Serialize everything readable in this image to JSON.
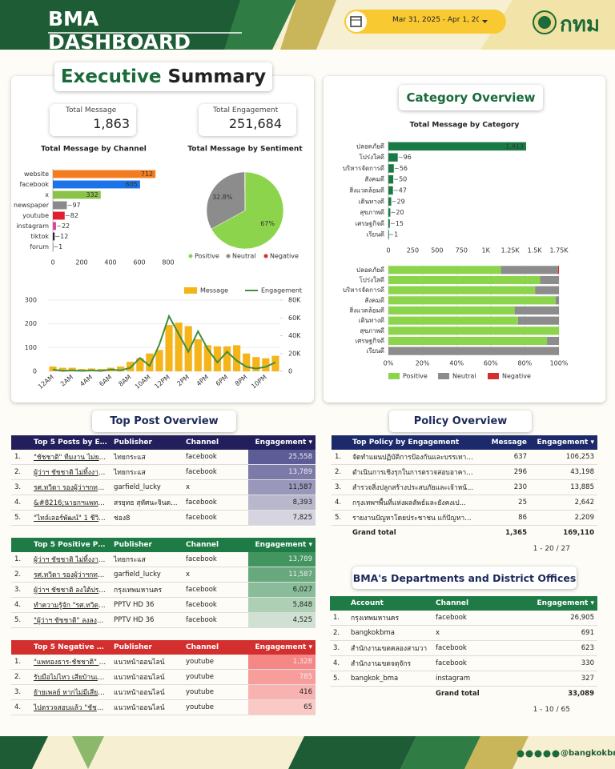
{
  "header": {
    "title": "BMA DASHBOARD",
    "date_range": "Mar 31, 2025 - Apr 1, 202",
    "logo": "กทม"
  },
  "executive_summary": {
    "title_a": "Executive",
    "title_b": "Summary",
    "kpis": [
      {
        "label": "Total Message",
        "value": "1,863"
      },
      {
        "label": "Total Engagement",
        "value": "251,684"
      }
    ]
  },
  "category_overview": {
    "title": "Category Overview"
  },
  "chart_data": [
    {
      "type": "bar",
      "orientation": "horizontal",
      "title": "Total Message by Channel",
      "categories": [
        "website",
        "facebook",
        "x",
        "newspaper",
        "youtube",
        "instagram",
        "tiktok",
        "forum"
      ],
      "values": [
        712,
        605,
        332,
        97,
        82,
        22,
        12,
        1
      ],
      "colors": [
        "#f47c20",
        "#1a73e8",
        "#8bc34a",
        "#8a8a8a",
        "#e0202e",
        "#e040a0",
        "#222222",
        "#9e9e9e"
      ],
      "xlim": [
        0,
        800
      ],
      "xticks": [
        0,
        200,
        400,
        600,
        800
      ],
      "grid": false
    },
    {
      "type": "pie",
      "title": "Total Message by Sentiment",
      "categories": [
        "Positive",
        "Neutral",
        "Negative"
      ],
      "values": [
        67,
        32.8,
        0.2
      ],
      "value_labels": [
        "67%",
        "32.8%",
        null
      ],
      "colors": [
        "#8cd44c",
        "#8c8c8c",
        "#d32f2f"
      ],
      "legend": "bottom"
    },
    {
      "type": "combo",
      "categories": [
        "12AM",
        null,
        "2AM",
        null,
        "4AM",
        null,
        "6AM",
        null,
        "8AM",
        null,
        "10AM",
        null,
        "12PM",
        null,
        "2PM",
        null,
        "4PM",
        null,
        "6PM",
        null,
        "8PM",
        null,
        "10PM",
        null
      ],
      "series": [
        {
          "name": "Message",
          "kind": "bar",
          "color": "#f5b41a",
          "values": [
            20,
            15,
            15,
            10,
            12,
            10,
            15,
            20,
            40,
            55,
            75,
            90,
            195,
            205,
            190,
            135,
            110,
            105,
            105,
            110,
            75,
            60,
            55,
            65
          ]
        },
        {
          "name": "Engagement",
          "kind": "line",
          "axis": "y2",
          "color": "#3f8f3f",
          "values": [
            2000,
            500,
            1000,
            500,
            1000,
            500,
            2000,
            1000,
            4000,
            15000,
            6000,
            30000,
            62000,
            42000,
            22000,
            45000,
            25000,
            10000,
            22000,
            12000,
            5000,
            3000,
            5000,
            10000
          ]
        }
      ],
      "ylim": [
        0,
        300
      ],
      "yticks": [
        0,
        100,
        200,
        300
      ],
      "y2lim": [
        0,
        80000
      ],
      "y2ticks": [
        0,
        {
          "value": 20000,
          "label": "20K"
        },
        {
          "value": 40000,
          "label": "40K"
        },
        {
          "value": 60000,
          "label": "60K"
        },
        {
          "value": 80000,
          "label": "80K"
        }
      ],
      "legend": "top",
      "grid": true
    },
    {
      "type": "bar",
      "orientation": "horizontal",
      "title": "Total Message by Category",
      "categories": [
        "ปลอดภัยดี",
        "โปร่งใสดี",
        "บริหารจัดการดี",
        "สังคมดี",
        "สิ่งแวดล้อมดี",
        "เดินทางดี",
        "สุขภาพดี",
        "เศรษฐกิจดี",
        "เรียนดี"
      ],
      "values": [
        1413,
        96,
        56,
        50,
        47,
        29,
        20,
        15,
        1
      ],
      "value_labels": [
        "1,413",
        "96",
        "56",
        "50",
        "47",
        "29",
        "20",
        "15",
        "1"
      ],
      "color": "#1a7a45",
      "xlim": [
        0,
        1750
      ],
      "xticks": [
        0,
        250,
        500,
        750,
        {
          "value": 1000,
          "label": "1K"
        },
        {
          "value": 1250,
          "label": "1.25K"
        },
        {
          "value": 1500,
          "label": "1.5K"
        },
        {
          "value": 1750,
          "label": "1.75K"
        }
      ],
      "grid": false
    },
    {
      "type": "stacked_bar",
      "orientation": "horizontal",
      "categories": [
        "ปลอดภัยดี",
        "โปร่งใสดี",
        "บริหารจัดการดี",
        "สังคมดี",
        "สิ่งแวดล้อมดี",
        "เดินทางดี",
        "สุขภาพดี",
        "เศรษฐกิจดี",
        "เรียนดี"
      ],
      "series": [
        {
          "name": "Positive",
          "color": "#8cd44c",
          "values": [
            66,
            89,
            86,
            98,
            74,
            76,
            100,
            93,
            0
          ]
        },
        {
          "name": "Neutral",
          "color": "#8c8c8c",
          "values": [
            33.5,
            11,
            14,
            2,
            26,
            24,
            0,
            7,
            100
          ]
        },
        {
          "name": "Negative",
          "color": "#d32f2f",
          "values": [
            0.5,
            0,
            0,
            0,
            0,
            0,
            0,
            0,
            0
          ]
        }
      ],
      "xlim": [
        0,
        100
      ],
      "xticks": [
        {
          "value": 0,
          "label": "0%"
        },
        {
          "value": 20,
          "label": "20%"
        },
        {
          "value": 40,
          "label": "40%"
        },
        {
          "value": 60,
          "label": "60%"
        },
        {
          "value": 80,
          "label": "80%"
        },
        {
          "value": 100,
          "label": "100%"
        }
      ],
      "legend": "bottom",
      "grid": true
    }
  ],
  "top_post_overview": {
    "title": "Top Post Overview",
    "tables": [
      {
        "color": "#231f5c",
        "heat": "#4b4a8c",
        "columns": [
          "Top 5 Posts by En...",
          "Publisher",
          "Channel",
          "Engagement ▾"
        ],
        "rows": [
          [
            "1.",
            "\"ชัชชาติ\" ทีมงาน ไม่ยอมเล...",
            "ไทยกระแส",
            "facebook",
            "25,558"
          ],
          [
            "2.",
            "ผู้ว่าฯ ชัชชาติ ไม่ทิ้งงานน...",
            "ไทยกระแส",
            "facebook",
            "13,789"
          ],
          [
            "3.",
            "รศ.ทวิดา รองผู้ว่าฯกทม.พื้...",
            "garfield_lucky",
            "x",
            "11,587"
          ],
          [
            "4.",
            "&#8216;นายกฯแพทองธ...",
            "สรยุทธ สุทัศนะจินดา กรร...",
            "facebook",
            "8,393"
          ],
          [
            "5.",
            "\"ไทล์เลอร์พัฒน์\" 1 ชีวิต กัป...",
            "ช่อง8",
            "facebook",
            "7,825"
          ]
        ]
      },
      {
        "color": "#1e7b46",
        "heat": "#2e8a4f",
        "columns": [
          "Top 5 Positive Po...",
          "Publisher",
          "Channel",
          "Engagement ▾"
        ],
        "rows": [
          [
            "1.",
            "ผู้ว่าฯ ชัชชาติ ไม่ทิ้งงานน...",
            "ไทยกระแส",
            "facebook",
            "13,789"
          ],
          [
            "2.",
            "รศ.ทวิดา รองผู้ว่าฯกทม.พื้...",
            "garfield_lucky",
            "x",
            "11,587"
          ],
          [
            "3.",
            "ผู้ว่าฯ ชัชชาติ ลงใต้ประเม...",
            "กรุงเทพมหานคร",
            "facebook",
            "6,027"
          ],
          [
            "4.",
            "ทำความรู้จัก \"รศ.ทวิดา ร...",
            "PPTV HD 36",
            "facebook",
            "5,848"
          ],
          [
            "5.",
            "\"ผู้ว่าฯ ชัชชาติ\" ลงลงพื้นที...",
            "PPTV HD 36",
            "facebook",
            "4,525"
          ]
        ]
      },
      {
        "color": "#d32f2f",
        "heat": "#f47a7a",
        "columns": [
          "Top 5 Negative P...",
          "Publisher",
          "Channel",
          "Engagement ▾"
        ],
        "rows": [
          [
            "1.",
            "\"แพทองธาร-ชัชชาติ\" ลงพ...",
            "แนวหน้าออนไลน์",
            "youtube",
            "1,328"
          ],
          [
            "2.",
            "รับมือไม่ไหว เสียบ้านเมือ...",
            "แนวหน้าออนไลน์",
            "youtube",
            "785"
          ],
          [
            "3.",
            "ย้ายเพลย์ หากไม่มีเสียงเย...",
            "แนวหน้าออนไลน์",
            "youtube",
            "416"
          ],
          [
            "4.",
            "ไปตรวจสอบแล้ว \"ชัชชาติ\"...",
            "แนวหน้าออนไลน์",
            "youtube",
            "65"
          ]
        ]
      }
    ]
  },
  "policy_overview": {
    "title": "Policy Overview",
    "table": {
      "color": "#1c2a6b",
      "columns": [
        "Top Policy by Engagement",
        "Message",
        "Engagement ▾"
      ],
      "rows": [
        [
          "1.",
          "จัดทำแผนปฏิบัติการป้องกันและบรรเทาส...",
          "637",
          "106,253"
        ],
        [
          "2.",
          "ตำเนินการเชิงรุกในการตรวจสอบอาคารเก่...",
          "296",
          "43,198"
        ],
        [
          "3.",
          "สำรวจสิ่งปลูกสร้างประสบภัยและเจ้าหน้...",
          "230",
          "13,885"
        ],
        [
          "4.",
          "กรุงเทพฯพื้นที่แห่งผลลัพธ์และยังคงเป...",
          "25",
          "2,642"
        ],
        [
          "5.",
          "รายงานปัญหาโดยประชาชน แก้ปัญหาโด...",
          "86",
          "2,209"
        ]
      ],
      "total": [
        null,
        "Grand total",
        "1,365",
        "169,110"
      ],
      "pagination": "1 - 20 / 27"
    }
  },
  "departments": {
    "title": "BMA's Departments and District Offices",
    "table": {
      "color": "#1e7b46",
      "columns": [
        "Account",
        "Channel",
        "Engagement ▾"
      ],
      "rows": [
        [
          "1.",
          "กรุงเทพมหานคร",
          "facebook",
          "26,905"
        ],
        [
          "2.",
          "bangkokbma",
          "x",
          "691"
        ],
        [
          "3.",
          "สำนักงานเขตคลองสามวา",
          "facebook",
          "623"
        ],
        [
          "4.",
          "สำนักงานเขตจตุจักร",
          "facebook",
          "330"
        ],
        [
          "5.",
          "bangkok_bma",
          "instagram",
          "327"
        ]
      ],
      "total": [
        null,
        null,
        "Grand total",
        "33,089"
      ],
      "pagination": "1 - 10 / 65"
    }
  },
  "footer": {
    "handle": "@bangkokbma"
  }
}
